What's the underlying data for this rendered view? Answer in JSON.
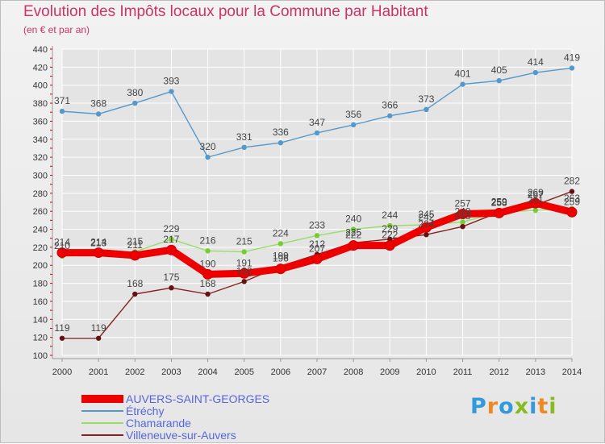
{
  "header": {
    "title": "Evolution des Impôts locaux pour la Commune par Habitant",
    "subtitle": "(en € et par an)"
  },
  "colors": {
    "title": "#cc3366",
    "grid": "#ffffff",
    "axis_red_ticks": "#dd0000",
    "axis_text": "#333333",
    "legend_text": "#5566dd"
  },
  "logo": {
    "text": "Proxiti",
    "colors": [
      "#3399dd",
      "#ee8822",
      "#3399dd",
      "#88bb22",
      "#3399dd",
      "#ee8822",
      "#88bb22"
    ]
  },
  "chart_data": {
    "type": "line",
    "x": [
      "2000",
      "2001",
      "2002",
      "2003",
      "2004",
      "2005",
      "2006",
      "2007",
      "2008",
      "2009",
      "2010",
      "2011",
      "2012",
      "2013",
      "2014"
    ],
    "ylim": [
      100,
      440
    ],
    "yticks": [
      100,
      120,
      140,
      160,
      180,
      200,
      220,
      240,
      260,
      280,
      300,
      320,
      340,
      360,
      380,
      400,
      420,
      440
    ],
    "grid": true,
    "legend_position": "bottom-left",
    "series": [
      {
        "name": "AUVERS-SAINT-GEORGES",
        "color": "#ee0000",
        "marker": "#ee0000",
        "values": [
          214,
          214,
          211,
          217,
          190,
          191,
          196,
          207,
          222,
          222,
          242,
          257,
          258,
          269,
          259
        ],
        "labels": [
          "214",
          "214",
          "211",
          "217",
          "190",
          "191",
          "196",
          "207",
          "222",
          "222",
          "242",
          "257",
          "258",
          "269",
          "259"
        ],
        "bold": true
      },
      {
        "name": "Étréchy",
        "color": "#5599cc",
        "marker": "#5599cc",
        "values": [
          371,
          368,
          380,
          393,
          320,
          331,
          336,
          347,
          356,
          366,
          373,
          401,
          405,
          414,
          419
        ],
        "labels": [
          "371",
          "368",
          "380",
          "393",
          "320",
          "331",
          "336",
          "347",
          "356",
          "366",
          "373",
          "401",
          "405",
          "414",
          "419"
        ],
        "bold": false
      },
      {
        "name": "Chamarande",
        "color": "#99dd66",
        "marker": "#77cc33",
        "values": [
          210,
          213,
          215,
          229,
          216,
          215,
          224,
          233,
          240,
          244,
          245,
          248,
          259,
          261,
          263
        ],
        "labels": [
          "210",
          "213",
          "215",
          "229",
          "216",
          "215",
          "224",
          "233",
          "240",
          "244",
          "245",
          "248",
          "259",
          "261",
          "263"
        ],
        "bold": false
      },
      {
        "name": "Villeneuve-sur-Auvers",
        "color": "#882222",
        "marker": "#661111",
        "values": [
          119,
          119,
          168,
          175,
          168,
          182,
          199,
          212,
          225,
          229,
          234,
          243,
          259,
          267,
          282
        ],
        "labels": [
          "119",
          "119",
          "168",
          "175",
          "168",
          "182",
          "199",
          "212",
          "225",
          "229",
          "234",
          "243",
          "259",
          "267",
          "282"
        ],
        "bold": false
      }
    ]
  }
}
